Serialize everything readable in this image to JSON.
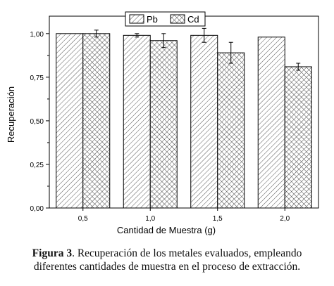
{
  "chart_data": {
    "type": "bar",
    "categories": [
      "0,5",
      "1,0",
      "1,5",
      "2,0"
    ],
    "series": [
      {
        "name": "Pb",
        "values": [
          1.0,
          0.99,
          0.99,
          0.98
        ],
        "errors": [
          0.0,
          0.01,
          0.04,
          0.0
        ],
        "pattern": "diagonal-hatch"
      },
      {
        "name": "Cd",
        "values": [
          1.0,
          0.96,
          0.89,
          0.81
        ],
        "errors": [
          0.02,
          0.04,
          0.06,
          0.02
        ],
        "pattern": "crosshatch"
      }
    ],
    "xlabel": "Cantidad de Muestra (g)",
    "ylabel": "Recuperación",
    "ylim": [
      0,
      1.1
    ],
    "yticks": [
      "0,00",
      "0,25",
      "0,50",
      "0,75",
      "1,00"
    ],
    "ytick_values": [
      0,
      0.25,
      0.5,
      0.75,
      1.0
    ],
    "grid": false,
    "legend_position": "top-center"
  },
  "caption": {
    "label": "Figura 3",
    "line1": ". Recuperación de los metales evaluados,  empleando",
    "line2": "diferentes cantidades de muestra en el proceso de extracción."
  }
}
